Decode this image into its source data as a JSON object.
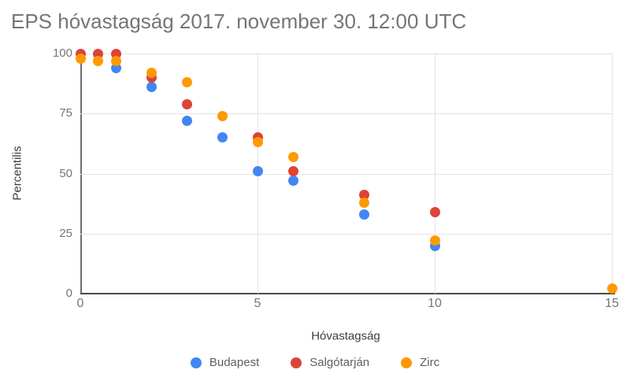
{
  "chart_data": {
    "type": "scatter",
    "title": "EPS hóvastagság 2017. november 30. 12:00 UTC",
    "xlabel": "Hóvastagság",
    "ylabel": "Percentilis",
    "xlim": [
      0,
      15
    ],
    "ylim": [
      0,
      100
    ],
    "x_ticks": [
      0,
      5,
      10,
      15
    ],
    "y_ticks": [
      0,
      25,
      50,
      75,
      100
    ],
    "grid": true,
    "legend_position": "bottom",
    "x": [
      0,
      0.5,
      1,
      2,
      3,
      4,
      5,
      6,
      8,
      10,
      15
    ],
    "series": [
      {
        "id": "budapest",
        "name": "Budapest",
        "color": "#4285F4",
        "values": [
          null,
          null,
          94,
          86,
          72,
          65,
          51,
          47,
          33,
          20,
          null
        ]
      },
      {
        "id": "salgotarjan",
        "name": "Salgótarján",
        "color": "#DB4437",
        "values": [
          100,
          100,
          100,
          90,
          79,
          null,
          65,
          51,
          41,
          34,
          null
        ]
      },
      {
        "id": "zirc",
        "name": "Zirc",
        "color": "#FF9900",
        "values": [
          98,
          97,
          97,
          92,
          88,
          74,
          63,
          57,
          38,
          22,
          2
        ]
      }
    ],
    "note": "null = marker not visible in the image (fully hidden behind another series' marker)"
  }
}
